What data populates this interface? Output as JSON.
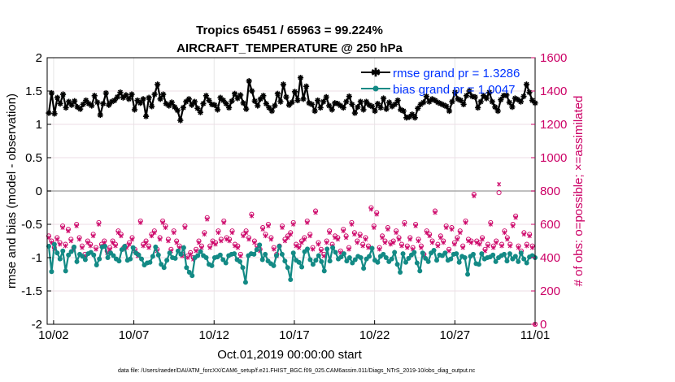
{
  "chart_data": {
    "type": "line",
    "title": "Tropics 65451 / 65963 = 99.224%",
    "subtitle": "AIRCRAFT_TEMPERATURE @ 250 hPa",
    "xlabel": "Oct.01,2019 00:00:00 start",
    "ylabel": "rmse and bias (model - observation)",
    "ylabel_right": "# of obs: o=possible; ×=assimilated",
    "footnote": "data file: /Users/raeder/DAI/ATM_forcXX/CAM6_setup/f.e21.FHIST_BGC.f09_025.CAM6assim.011/Diags_NTrS_2019-10/obs_diag_output.nc",
    "xlim": [
      1.6,
      32.0
    ],
    "ylim": [
      -2,
      2
    ],
    "ylim_right": [
      0,
      1600
    ],
    "x_ticks": [
      2,
      7,
      12,
      17,
      22,
      27,
      32
    ],
    "x_tick_labels": [
      "10/02",
      "10/07",
      "10/12",
      "10/17",
      "10/22",
      "10/27",
      "11/01"
    ],
    "y_ticks": [
      -2,
      -1.5,
      -1,
      -0.5,
      0,
      0.5,
      1,
      1.5,
      2
    ],
    "y_tick_labels": [
      "-2",
      "-1.5",
      "-1",
      "-0.5",
      "0",
      "0.5",
      "1",
      "1.5",
      "2"
    ],
    "y_ticks_right": [
      0,
      200,
      400,
      600,
      800,
      1000,
      1200,
      1400,
      1600
    ],
    "y_tick_labels_right": [
      "0",
      "200",
      "400",
      "600",
      "800",
      "1000",
      "1200",
      "1400",
      "1600"
    ],
    "grid": true,
    "legend_position": "top-right",
    "colors": {
      "rmse": "#000000",
      "bias": "#138a85",
      "obs": "#cc0066",
      "zero": "#aaaaaa",
      "grid": "#e6e6e6",
      "legend_text": "#0033ff"
    },
    "series": [
      {
        "name": "rmse grand pr = 1.3286",
        "kind": "rmse",
        "values": [
          1.17,
          1.47,
          1.16,
          1.4,
          1.31,
          1.45,
          1.25,
          1.34,
          1.29,
          1.35,
          1.26,
          1.23,
          1.3,
          1.36,
          1.31,
          1.28,
          1.43,
          1.33,
          1.14,
          1.31,
          1.47,
          1.29,
          1.34,
          1.36,
          1.41,
          1.48,
          1.4,
          1.44,
          1.38,
          1.45,
          1.22,
          1.36,
          1.32,
          1.38,
          1.12,
          1.4,
          1.27,
          1.45,
          1.6,
          1.38,
          1.45,
          1.31,
          1.28,
          1.33,
          1.26,
          1.21,
          1.06,
          1.25,
          1.34,
          1.38,
          1.29,
          1.34,
          1.24,
          1.18,
          1.31,
          1.43,
          1.36,
          1.3,
          1.29,
          1.22,
          1.4,
          1.36,
          1.31,
          1.25,
          1.35,
          1.46,
          1.39,
          1.44,
          1.32,
          1.23,
          1.65,
          1.5,
          1.35,
          1.28,
          1.38,
          1.43,
          1.31,
          1.25,
          1.2,
          1.28,
          1.46,
          1.34,
          1.6,
          1.41,
          1.29,
          1.33,
          1.49,
          1.36,
          1.7,
          1.38,
          1.57,
          1.32,
          1.3,
          1.2,
          1.36,
          1.25,
          1.34,
          1.41,
          1.28,
          1.22,
          1.32,
          1.31,
          1.28,
          1.25,
          1.34,
          1.42,
          1.3,
          1.17,
          1.26,
          1.34,
          1.22,
          1.34,
          1.29,
          1.27,
          1.2,
          1.31,
          1.25,
          1.39,
          1.23,
          1.33,
          1.27,
          1.3,
          1.36,
          1.22,
          1.2,
          1.1,
          1.11,
          1.15,
          1.1,
          1.24,
          1.3,
          1.33,
          1.42,
          1.34,
          1.38,
          1.36,
          1.33,
          1.31,
          1.29,
          1.27,
          1.2,
          1.34,
          1.48,
          1.38,
          1.36,
          1.3,
          1.43,
          1.5,
          1.42,
          1.41,
          1.25,
          1.34,
          1.43,
          1.39,
          1.48,
          1.34,
          1.26,
          1.2,
          1.37,
          1.43,
          1.44,
          1.33,
          1.26,
          1.39,
          1.37,
          1.34,
          1.42,
          1.6,
          1.48,
          1.36,
          1.32
        ]
      },
      {
        "name": "bias grand pr = 1.0047",
        "kind": "bias",
        "values": [
          -0.83,
          -1.21,
          -0.8,
          -0.93,
          -1.02,
          -0.9,
          -1.2,
          -0.96,
          -0.91,
          -0.84,
          -1.06,
          -0.95,
          -0.98,
          -1.03,
          -0.94,
          -0.92,
          -0.96,
          -1.11,
          -1.02,
          -0.84,
          -0.83,
          -1.0,
          -0.93,
          -0.97,
          -1.02,
          -1.05,
          -0.88,
          -0.83,
          -1.04,
          -1.02,
          -0.85,
          -0.93,
          -0.96,
          -1.02,
          -1.11,
          -1.08,
          -1.07,
          -0.98,
          -0.84,
          -0.96,
          -1.1,
          -1.15,
          -1.04,
          -0.93,
          -1.0,
          -1.01,
          -0.9,
          -0.95,
          -0.85,
          -1.15,
          -1.22,
          -1.27,
          -1.0,
          -0.97,
          -0.91,
          -0.97,
          -1.0,
          -1.1,
          -1.12,
          -1.0,
          -0.99,
          -0.96,
          -1.03,
          -1.08,
          -0.97,
          -0.95,
          -0.94,
          -1.03,
          -1.06,
          -1.15,
          -1.37,
          -0.97,
          -0.94,
          -0.95,
          -0.88,
          -0.81,
          -1.03,
          -0.95,
          -1.05,
          -1.09,
          -1.12,
          -0.97,
          -0.83,
          -0.95,
          -1.05,
          -1.15,
          -1.33,
          -0.93,
          -1.04,
          -1.07,
          -1.14,
          -0.91,
          -0.87,
          -1.03,
          -1.1,
          -1.04,
          -0.97,
          -1.06,
          -1.2,
          -0.87,
          -1.05,
          -0.85,
          -0.92,
          -1.02,
          -0.99,
          -0.94,
          -1.05,
          -1.0,
          -1.08,
          -1.03,
          -0.98,
          -1.0,
          -1.16,
          -1.02,
          -0.98,
          -0.86,
          -1.04,
          -1.07,
          -0.98,
          -0.95,
          -1.0,
          -1.06,
          -1.02,
          -0.92,
          -1.1,
          -1.22,
          -0.94,
          -1.07,
          -1.01,
          -0.96,
          -0.92,
          -1.08,
          -1.2,
          -0.93,
          -1.01,
          -1.06,
          -0.93,
          -0.89,
          -1.04,
          -0.96,
          -0.97,
          -0.93,
          -1.04,
          -1.02,
          -0.95,
          -0.94,
          -1.07,
          -0.98,
          -1.0,
          -1.25,
          -0.98,
          -0.95,
          -1.09,
          -1.1,
          -0.94,
          -1.02,
          -1.0,
          -0.99,
          -0.96,
          -1.06,
          -1.0,
          -0.97,
          -0.95,
          -1.05,
          -0.94,
          -1.02,
          -0.98,
          -1.06,
          -0.93,
          -1.02,
          -1.08,
          -0.99,
          -0.97,
          -1.0
        ]
      }
    ],
    "obs_possible": [
      530,
      500,
      460,
      520,
      490,
      590,
      480,
      570,
      510,
      460,
      600,
      520,
      470,
      420,
      500,
      480,
      540,
      460,
      610,
      480,
      500,
      440,
      460,
      500,
      480,
      560,
      540,
      460,
      470,
      490,
      520,
      450,
      420,
      620,
      480,
      500,
      470,
      540,
      560,
      450,
      520,
      620,
      590,
      510,
      450,
      560,
      500,
      470,
      420,
      590,
      410,
      430,
      400,
      450,
      500,
      470,
      550,
      640,
      470,
      500,
      490,
      560,
      510,
      620,
      520,
      510,
      560,
      480,
      470,
      420,
      540,
      560,
      520,
      660,
      500,
      470,
      450,
      580,
      540,
      600,
      520,
      460,
      420,
      470,
      590,
      510,
      530,
      550,
      610,
      480,
      470,
      500,
      520,
      620,
      540,
      460,
      680,
      490,
      450,
      420,
      500,
      560,
      480,
      530,
      520,
      440,
      570,
      530,
      460,
      610,
      550,
      500,
      540,
      480,
      520,
      470,
      700,
      590,
      670,
      460,
      530,
      500,
      580,
      490,
      500,
      560,
      520,
      480,
      610,
      470,
      520,
      460,
      600,
      510,
      470,
      420,
      560,
      540,
      500,
      680,
      480,
      530,
      500,
      590,
      450,
      580,
      490,
      520,
      560,
      470,
      620,
      510,
      500,
      780,
      500,
      490,
      520,
      450,
      480,
      610,
      470,
      500,
      790,
      480,
      560,
      520,
      480,
      600,
      650,
      470,
      440,
      550,
      480,
      540,
      470,
      0
    ],
    "obs_assimilated": [
      520,
      490,
      450,
      510,
      480,
      580,
      470,
      560,
      500,
      450,
      590,
      510,
      460,
      410,
      490,
      470,
      530,
      450,
      600,
      470,
      490,
      430,
      450,
      490,
      470,
      550,
      530,
      450,
      460,
      480,
      510,
      440,
      410,
      610,
      470,
      490,
      460,
      530,
      550,
      440,
      510,
      610,
      580,
      500,
      440,
      550,
      490,
      460,
      410,
      580,
      400,
      420,
      390,
      440,
      490,
      460,
      540,
      630,
      460,
      490,
      480,
      550,
      500,
      610,
      510,
      500,
      550,
      470,
      460,
      410,
      530,
      550,
      510,
      650,
      490,
      460,
      440,
      570,
      530,
      590,
      510,
      450,
      410,
      460,
      580,
      500,
      520,
      540,
      600,
      470,
      460,
      490,
      510,
      610,
      530,
      450,
      670,
      480,
      440,
      410,
      490,
      550,
      470,
      520,
      510,
      430,
      560,
      520,
      450,
      600,
      540,
      490,
      530,
      470,
      510,
      460,
      690,
      580,
      660,
      450,
      520,
      490,
      570,
      480,
      490,
      550,
      510,
      470,
      600,
      460,
      510,
      450,
      590,
      500,
      460,
      410,
      550,
      530,
      490,
      670,
      470,
      520,
      490,
      580,
      440,
      570,
      480,
      510,
      550,
      460,
      610,
      500,
      490,
      770,
      490,
      480,
      510,
      440,
      470,
      600,
      460,
      490,
      840,
      470,
      550,
      510,
      470,
      590,
      640,
      460,
      430,
      540,
      470,
      530,
      460,
      0
    ]
  }
}
